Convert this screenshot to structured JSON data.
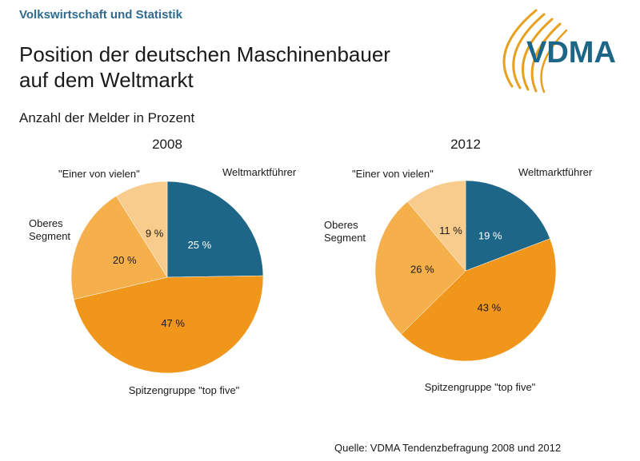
{
  "section_label": "Volkswirtschaft und Statistik",
  "title_line1": "Position der deutschen Maschinenbauer",
  "title_line2": "auf dem Weltmarkt",
  "subtitle": "Anzahl der Melder in Prozent",
  "logo_text": "VDMA",
  "source": "Quelle: VDMA Tendenzbefragung 2008 und 2012",
  "colors": {
    "weltmarktfuehrer": "#1d6688",
    "spitzengruppe": "#f0961a",
    "oberes_segment": "#f5af4b",
    "einer_von_vielen": "#f8cc8c",
    "logo_blue": "#1d6688",
    "logo_orange": "#e8a020"
  },
  "chart_data": [
    {
      "type": "pie",
      "title": "2008",
      "slices": [
        {
          "label": "Weltmarktführer",
          "value": 25,
          "value_label": "25 %",
          "color": "#1d6688"
        },
        {
          "label": "Spitzengruppe  \"top five\"",
          "value": 47,
          "value_label": "47 %",
          "color": "#f0961a"
        },
        {
          "label": "Oberes\nSegment",
          "value": 20,
          "value_label": "20 %",
          "color": "#f5af4b"
        },
        {
          "label": "\"Einer von vielen\"",
          "value": 9,
          "value_label": "9 %",
          "color": "#f8cc8c"
        }
      ]
    },
    {
      "type": "pie",
      "title": "2012",
      "slices": [
        {
          "label": "Weltmarktführer",
          "value": 19,
          "value_label": "19 %",
          "color": "#1d6688"
        },
        {
          "label": "Spitzengruppe  \"top five\"",
          "value": 43,
          "value_label": "43 %",
          "color": "#f0961a"
        },
        {
          "label": "Oberes\nSegment",
          "value": 26,
          "value_label": "26 %",
          "color": "#f5af4b"
        },
        {
          "label": "\"Einer von vielen\"",
          "value": 11,
          "value_label": "11 %",
          "color": "#f8cc8c"
        }
      ]
    }
  ]
}
